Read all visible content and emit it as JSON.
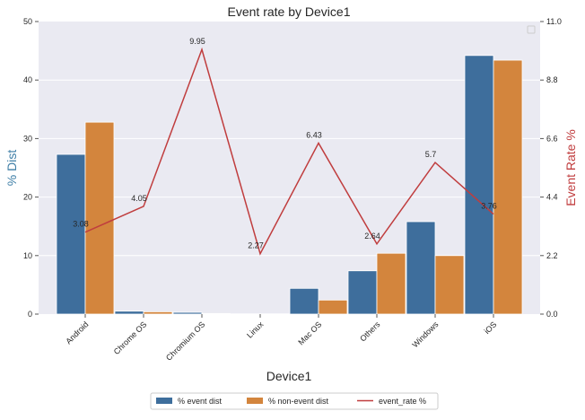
{
  "chart_data": {
    "type": "bar",
    "title": "Event rate by Device1",
    "xlabel": "Device1",
    "ylabel": "% Dist",
    "y2label": "Event Rate %",
    "ylim": [
      0,
      50
    ],
    "y2lim": [
      0,
      11
    ],
    "yticks": [
      "0",
      "10",
      "20",
      "30",
      "40",
      "50"
    ],
    "y2ticks": [
      "0.0",
      "2.2",
      "4.4",
      "6.6",
      "8.8",
      "11.0"
    ],
    "categories": [
      "Android",
      "Chrome OS",
      "Chromium OS",
      "Linux",
      "Mac OS",
      "Others",
      "Windows",
      "iOS"
    ],
    "series": [
      {
        "name": "% event dist",
        "type": "bar",
        "color": "#3e6e9c",
        "values": [
          27.3,
          0.5,
          0.3,
          0.05,
          4.4,
          7.4,
          15.8,
          44.2
        ]
      },
      {
        "name": "% non-event dist",
        "type": "bar",
        "color": "#d3853d",
        "values": [
          32.8,
          0.4,
          0.1,
          0.05,
          2.4,
          10.4,
          10.0,
          43.4
        ]
      },
      {
        "name": "event_rate %",
        "type": "line",
        "axis": "right",
        "color": "#c03d3e",
        "values": [
          3.08,
          4.05,
          9.95,
          2.27,
          6.43,
          2.64,
          5.7,
          3.76
        ]
      }
    ],
    "data_labels": [
      "3.08",
      "4.05",
      "9.95",
      "2.27",
      "6.43",
      "2.64",
      "5.7",
      "3.76"
    ],
    "grid": true,
    "legend_placement": "bottom-center"
  }
}
